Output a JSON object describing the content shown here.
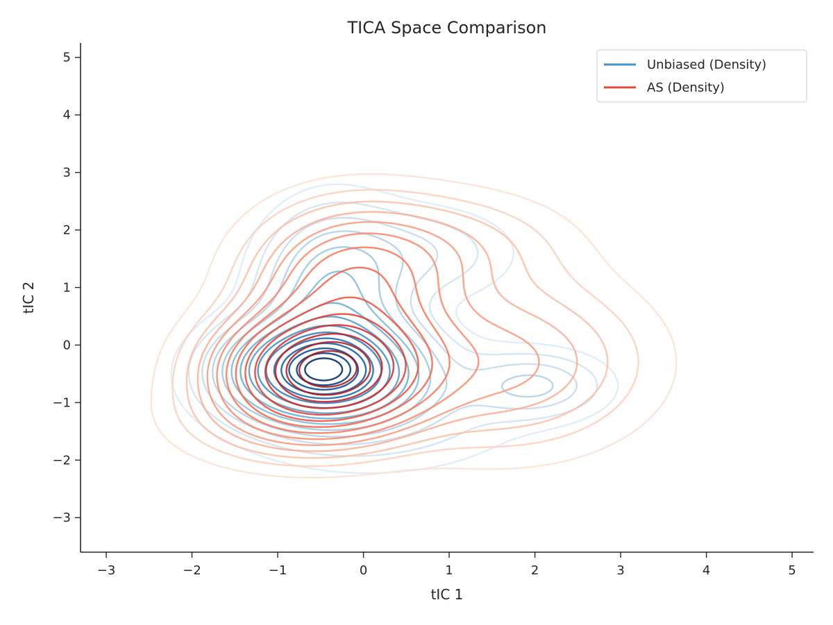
{
  "chart_data": {
    "type": "contour",
    "title": "TICA Space Comparison",
    "xlabel": "tIC 1",
    "ylabel": "tIC 2",
    "xlim": [
      -3.3,
      5.25
    ],
    "ylim": [
      -3.6,
      5.25
    ],
    "xticks": [
      -3,
      -2,
      -1,
      0,
      1,
      2,
      3,
      4,
      5
    ],
    "yticks": [
      -3,
      -2,
      -1,
      0,
      1,
      2,
      3,
      4,
      5
    ],
    "xtick_labels": [
      "−3",
      "−2",
      "−1",
      "0",
      "1",
      "2",
      "3",
      "4",
      "5"
    ],
    "ytick_labels": [
      "−3",
      "−2",
      "−1",
      "0",
      "1",
      "2",
      "3",
      "4",
      "5"
    ],
    "grid": false,
    "legend_position": "top-right",
    "series": [
      {
        "name": "Unbiased (Density)",
        "color": "#4292c6",
        "colormap": [
          "#deebf7",
          "#c6dbef",
          "#9ecae1",
          "#6baed6",
          "#4292c6",
          "#2171b5",
          "#08519c",
          "#08306b"
        ],
        "components": [
          {
            "cx": -0.5,
            "cy": -0.45,
            "sx": 0.62,
            "sy": 0.5,
            "w": 1.0
          },
          {
            "cx": -0.35,
            "cy": 0.75,
            "sx": 0.5,
            "sy": 0.9,
            "w": 0.28
          },
          {
            "cx": 2.0,
            "cy": -0.7,
            "sx": 0.5,
            "sy": 0.35,
            "w": 0.14
          },
          {
            "cx": 0.6,
            "cy": 1.6,
            "sx": 0.7,
            "sy": 0.5,
            "w": 0.09
          },
          {
            "cx": 0.2,
            "cy": -1.0,
            "sx": 1.0,
            "sy": 0.7,
            "w": 0.1
          }
        ],
        "levels": [
          0.02,
          0.045,
          0.08,
          0.12,
          0.17,
          0.23,
          0.3,
          0.38,
          0.47,
          0.56,
          0.65,
          0.73,
          0.81,
          0.88,
          0.94
        ]
      },
      {
        "name": "AS (Density)",
        "color": "#e34a33",
        "colormap": [
          "#fee0d2",
          "#fcbba1",
          "#fc9272",
          "#fb6a4a",
          "#ef3b2c",
          "#cb181d",
          "#a50f15"
        ],
        "components": [
          {
            "cx": -0.45,
            "cy": -0.45,
            "sx": 0.7,
            "sy": 0.6,
            "w": 1.0
          },
          {
            "cx": -0.15,
            "cy": 1.0,
            "sx": 0.7,
            "sy": 0.8,
            "w": 0.33
          },
          {
            "cx": 1.6,
            "cy": -0.3,
            "sx": 1.0,
            "sy": 0.9,
            "w": 0.18
          },
          {
            "cx": 0.9,
            "cy": 1.7,
            "sx": 0.9,
            "sy": 0.6,
            "w": 0.1
          },
          {
            "cx": -0.9,
            "cy": -1.3,
            "sx": 0.8,
            "sy": 0.5,
            "w": 0.1
          }
        ],
        "levels": [
          0.02,
          0.045,
          0.075,
          0.11,
          0.15,
          0.2,
          0.26,
          0.33,
          0.41,
          0.5,
          0.6,
          0.7,
          0.8,
          0.9
        ]
      }
    ]
  }
}
